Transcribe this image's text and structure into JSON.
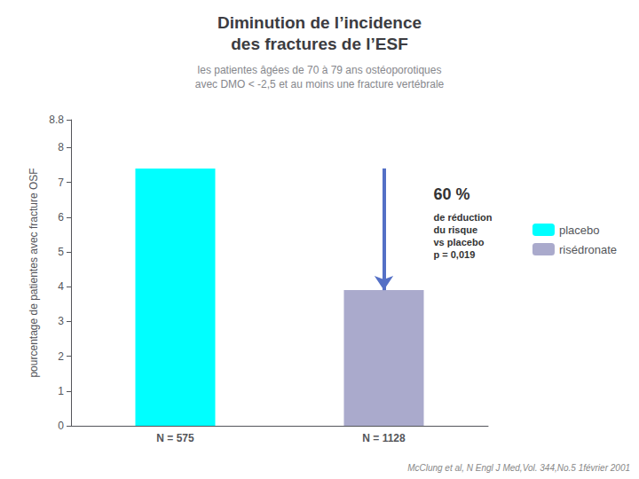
{
  "chart_data": {
    "type": "bar",
    "title": "Diminution de l’incidence\ndes fractures de l’ESF",
    "subtitle": "les patientes âgées de 70 à 79 ans ostéoporotiques\navec DMO < -2,5 et au moins une fracture vertébrale",
    "categories": [
      "N = 575",
      "N = 1128"
    ],
    "series": [
      {
        "name": "placebo",
        "color": "#00FFFF",
        "values": [
          7.4,
          null
        ]
      },
      {
        "name": "risédronate",
        "color": "#AAAACC",
        "values": [
          null,
          3.9
        ]
      }
    ],
    "ylabel": "pourcentage de patientes avec fracture OSF",
    "ylim": [
      0,
      8.8
    ],
    "yticks": [
      0,
      1,
      2,
      3,
      4,
      5,
      6,
      7,
      8
    ],
    "grid": false,
    "legend": "right",
    "annotations": [
      "60 %",
      "de réduction\ndu risque\nvs placebo\np = 0,019",
      "McClung et al, N Engl J Med,Vol. 344,No.5 1février 2001"
    ]
  }
}
